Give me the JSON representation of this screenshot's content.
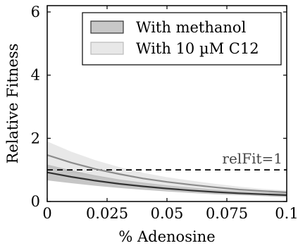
{
  "chart_data": {
    "type": "line",
    "title": "",
    "xlabel": "% Adenosine",
    "ylabel": "Relative Fitness",
    "xlim": [
      0,
      0.1
    ],
    "ylim": [
      0,
      6.2
    ],
    "x_ticks": [
      0,
      0.025,
      0.05,
      0.075,
      0.1
    ],
    "x_tick_labels": [
      "0",
      "0.025",
      "0.05",
      "0.075",
      "0.1"
    ],
    "y_ticks": [
      0,
      2,
      4,
      6
    ],
    "y_tick_labels": [
      "0",
      "2",
      "4",
      "6"
    ],
    "grid": false,
    "legend_position": "top-right",
    "x": [
      0,
      0.01,
      0.02,
      0.03,
      0.04,
      0.05,
      0.06,
      0.07,
      0.08,
      0.09,
      0.1
    ],
    "series": [
      {
        "name": "With methanol",
        "color": "#333333",
        "band_color": "#b3b3b3",
        "values": [
          0.92,
          0.78,
          0.66,
          0.56,
          0.48,
          0.41,
          0.35,
          0.3,
          0.26,
          0.23,
          0.2
        ],
        "lower": [
          0.67,
          0.58,
          0.5,
          0.43,
          0.37,
          0.32,
          0.27,
          0.23,
          0.2,
          0.17,
          0.14
        ],
        "upper": [
          1.17,
          0.99,
          0.83,
          0.7,
          0.6,
          0.51,
          0.44,
          0.38,
          0.33,
          0.29,
          0.26
        ]
      },
      {
        "name": "With 10 µM C12",
        "color": "#8c8c8c",
        "band_color": "#e6e6e6",
        "values": [
          1.47,
          1.23,
          1.03,
          0.87,
          0.73,
          0.62,
          0.53,
          0.45,
          0.38,
          0.33,
          0.29
        ],
        "lower": [
          1.07,
          0.91,
          0.78,
          0.67,
          0.57,
          0.49,
          0.42,
          0.36,
          0.31,
          0.26,
          0.22
        ],
        "upper": [
          1.9,
          1.58,
          1.31,
          1.09,
          0.91,
          0.77,
          0.66,
          0.56,
          0.47,
          0.4,
          0.35
        ]
      }
    ],
    "reference_line": {
      "y": 1,
      "label": "relFit=1",
      "style": "dashed"
    }
  }
}
